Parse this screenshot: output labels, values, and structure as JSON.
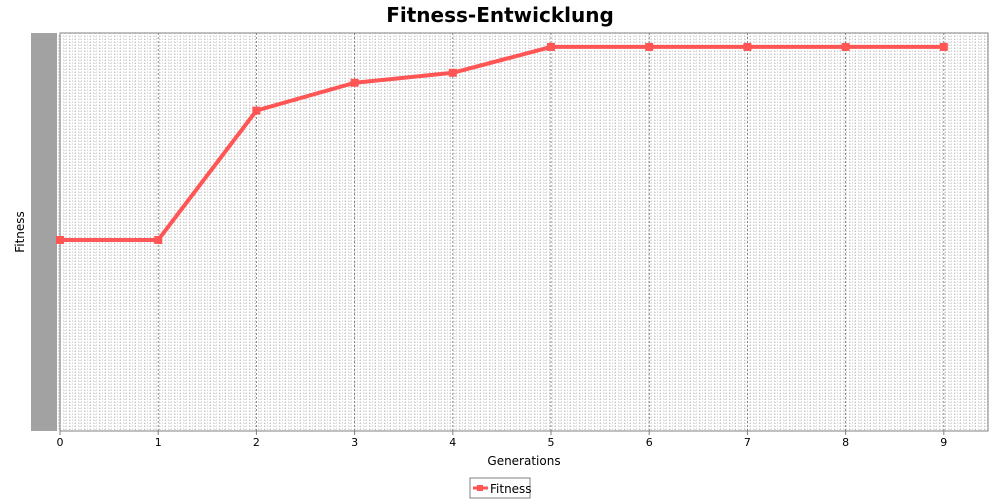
{
  "chart_data": {
    "type": "line",
    "title": "Fitness-Entwicklung",
    "xlabel": "Generations",
    "ylabel": "Fitness",
    "x": [
      0,
      1,
      2,
      3,
      4,
      5,
      6,
      7,
      8,
      9
    ],
    "xticks": [
      "0",
      "1",
      "2",
      "3",
      "4",
      "5",
      "6",
      "7",
      "8",
      "9"
    ],
    "xlim": [
      0,
      9.45
    ],
    "ylim": [
      0,
      1
    ],
    "y_tick_labels_legible": false,
    "series": [
      {
        "name": "Fitness",
        "color": "#ff5555",
        "values": [
          0.48,
          0.48,
          0.805,
          0.875,
          0.9,
          0.965,
          0.965,
          0.965,
          0.965,
          0.965
        ]
      }
    ],
    "grid": true,
    "legend_position": "bottom-center",
    "colors": {
      "plot_background": "#ffffff",
      "grid": "#808080"
    }
  }
}
